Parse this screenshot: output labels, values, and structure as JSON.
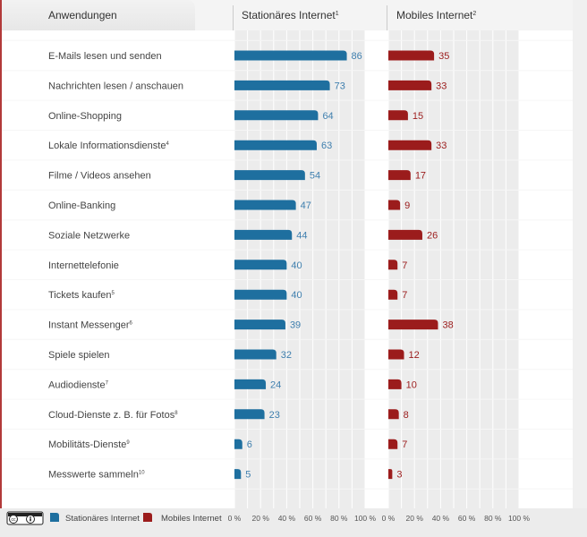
{
  "chart_data": {
    "type": "bar",
    "orientation": "horizontal",
    "category_header": "Anwendungen",
    "categories": [
      {
        "label": "E-Mails lesen und senden",
        "sup": ""
      },
      {
        "label": "Nachrichten lesen / anschauen",
        "sup": ""
      },
      {
        "label": "Online-Shopping",
        "sup": ""
      },
      {
        "label": "Lokale Informationsdienste",
        "sup": "4"
      },
      {
        "label": "Filme / Videos ansehen",
        "sup": ""
      },
      {
        "label": "Online-Banking",
        "sup": ""
      },
      {
        "label": "Soziale Netzwerke",
        "sup": ""
      },
      {
        "label": "Internettelefonie",
        "sup": ""
      },
      {
        "label": "Tickets kaufen",
        "sup": "5"
      },
      {
        "label": "Instant Messenger",
        "sup": "6"
      },
      {
        "label": "Spiele spielen",
        "sup": ""
      },
      {
        "label": "Audiodienste",
        "sup": "7"
      },
      {
        "label": "Cloud-Dienste z. B. für Fotos",
        "sup": "8"
      },
      {
        "label": "Mobilitäts-Dienste",
        "sup": "9"
      },
      {
        "label": "Messwerte sammeln",
        "sup": "10"
      }
    ],
    "series": [
      {
        "name": "Stationäres Internet",
        "header": "Stationäres Internet",
        "header_sup": "1",
        "color": "#1e6f9f",
        "label_color": "#3f7fae",
        "values": [
          86,
          73,
          64,
          63,
          54,
          47,
          44,
          40,
          40,
          39,
          32,
          24,
          23,
          6,
          5
        ]
      },
      {
        "name": "Mobiles Internet",
        "header": "Mobiles Internet",
        "header_sup": "2",
        "color": "#9b1c1c",
        "label_color": "#9b1c1c",
        "values": [
          35,
          33,
          15,
          33,
          17,
          9,
          26,
          7,
          7,
          38,
          12,
          10,
          8,
          7,
          3
        ]
      }
    ],
    "x_ticks": [
      "0 %",
      "20 %",
      "40 %",
      "60 %",
      "80 %",
      "100 %"
    ],
    "xlim": [
      0,
      100
    ],
    "legend_position": "bottom-left",
    "license_icon": "cc-by-icon"
  }
}
